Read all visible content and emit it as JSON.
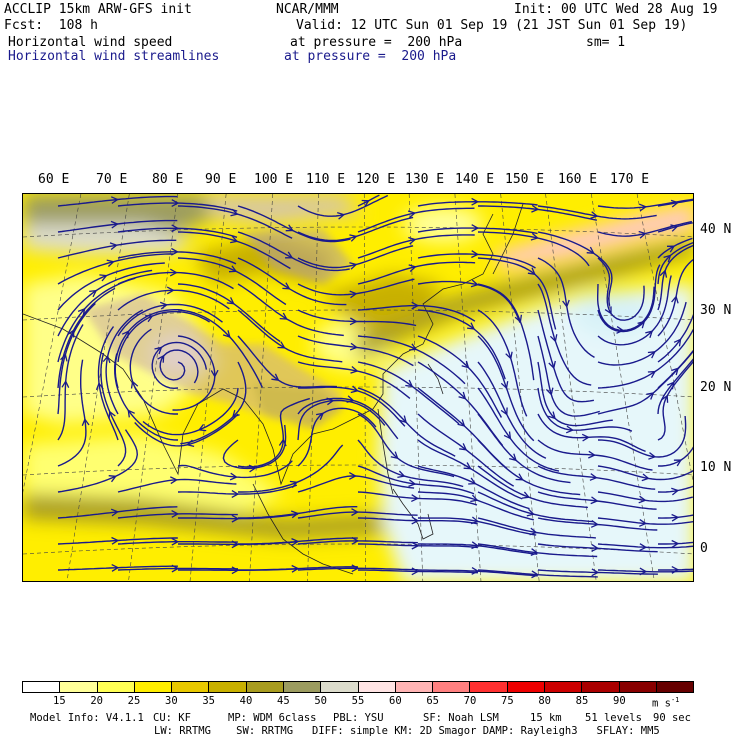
{
  "header": {
    "model_title": "ACCLIP 15km ARW-GFS init",
    "center": "NCAR/MMM",
    "init": "Init: 00 UTC Wed 28 Aug 19",
    "fcst": "Fcst:  108 h",
    "valid": "Valid: 12 UTC Sun 01 Sep 19 (21 JST Sun 01 Sep 19)",
    "field1_name": "Horizontal wind speed",
    "field1_level": "at pressure =  200 hPa",
    "smoothing": "sm= 1",
    "field2_name": "Horizontal wind streamlines",
    "field2_level": "at pressure =  200 hPa"
  },
  "map": {
    "lon_labels": [
      "60 E",
      "70 E",
      "80 E",
      "90 E",
      "100 E",
      "110 E",
      "120 E",
      "130 E",
      "140 E",
      "150 E",
      "160 E",
      "170 E"
    ],
    "lat_labels": [
      "40 N",
      "30 N",
      "20 N",
      "10 N",
      "0"
    ],
    "streamline_color": "#1a1a8c"
  },
  "colorbar": {
    "labels": [
      "15",
      "20",
      "25",
      "30",
      "35",
      "40",
      "45",
      "50",
      "55",
      "60",
      "65",
      "70",
      "75",
      "80",
      "85",
      "90"
    ],
    "units": "m s",
    "units_sup": "-1",
    "colors": [
      "#ffffff",
      "#ffff99",
      "#ffff55",
      "#ffee00",
      "#e8c800",
      "#c8b000",
      "#a89c20",
      "#9c9c60",
      "#dcdccc",
      "#ffe4e4",
      "#ffb4b4",
      "#ff8080",
      "#ff3030",
      "#ee0000",
      "#cc0000",
      "#aa0000",
      "#880000",
      "#660000"
    ]
  },
  "footer": {
    "line1": [
      {
        "label": "Model Info: V4.1.1"
      },
      {
        "label": "CU: KF"
      },
      {
        "label": "MP: WDM 6class"
      },
      {
        "label": "PBL: YSU"
      },
      {
        "label": "SF: Noah LSM"
      },
      {
        "label": "15 km"
      },
      {
        "label": "51 levels"
      },
      {
        "label": "90 sec"
      }
    ],
    "line2": "LW: RRTMG    SW: RRTMG   DIFF: simple KM: 2D Smagor DAMP: Rayleigh3   SFLAY: MM5"
  }
}
